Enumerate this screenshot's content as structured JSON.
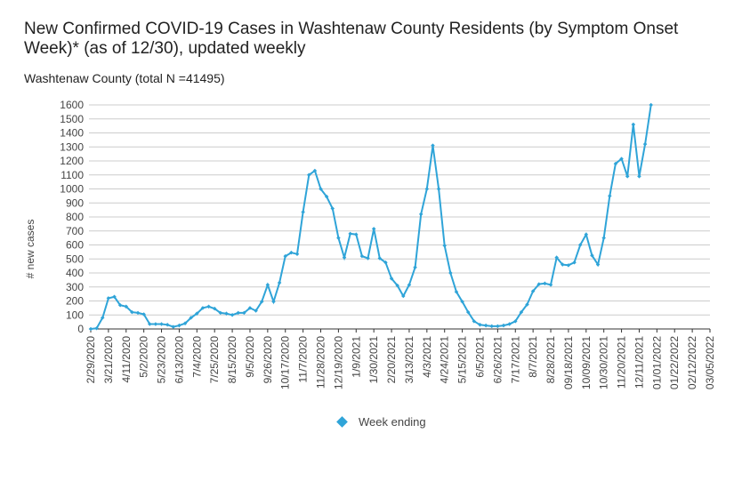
{
  "title": "New Confirmed COVID-19 Cases in Washtenaw County Residents (by Symptom Onset Week)* (as of 12/30), updated weekly",
  "subtitle": "Washtenaw County (total N =41495)",
  "legend": {
    "label": "Week ending",
    "color": "#2fa4d8"
  },
  "chart_data": {
    "type": "line",
    "title": "New Confirmed COVID-19 Cases in Washtenaw County Residents (by Symptom Onset Week)* (as of 12/30), updated weekly",
    "subtitle": "Washtenaw County (total N =41495)",
    "xlabel": "",
    "ylabel": "# new cases",
    "ylim": [
      0,
      1600
    ],
    "yticks": [
      0,
      100,
      200,
      300,
      400,
      500,
      600,
      700,
      800,
      900,
      1000,
      1100,
      1200,
      1300,
      1400,
      1500,
      1600
    ],
    "grid": true,
    "legend_position": "bottom",
    "color": "#2fa4d8",
    "xtick_labels": [
      "2/29/2020",
      "3/21/2020",
      "4/11/2020",
      "5/2/2020",
      "5/23/2020",
      "6/13/2020",
      "7/4/2020",
      "7/25/2020",
      "8/15/2020",
      "9/5/2020",
      "9/26/2020",
      "10/17/2020",
      "11/7/2020",
      "11/28/2020",
      "12/19/2020",
      "1/9/2021",
      "1/30/2021",
      "2/20/2021",
      "3/13/2021",
      "4/3/2021",
      "4/24/2021",
      "5/15/2021",
      "6/5/2021",
      "6/26/2021",
      "7/17/2021",
      "8/7/2021",
      "8/28/2021",
      "09/18/2021",
      "10/09/2021",
      "10/30/2021",
      "11/20/2021",
      "12/11/2021",
      "01/01/2022",
      "01/22/2022",
      "02/12/2022",
      "03/05/2022"
    ],
    "series": [
      {
        "name": "Week ending",
        "values": [
          0,
          5,
          80,
          220,
          230,
          170,
          160,
          120,
          115,
          105,
          35,
          35,
          35,
          30,
          15,
          25,
          40,
          80,
          110,
          150,
          160,
          145,
          115,
          110,
          100,
          115,
          115,
          150,
          130,
          195,
          315,
          195,
          330,
          520,
          545,
          535,
          835,
          1100,
          1130,
          1000,
          945,
          860,
          650,
          510,
          680,
          675,
          520,
          505,
          715,
          505,
          475,
          360,
          310,
          235,
          315,
          440,
          820,
          1000,
          1310,
          1000,
          595,
          400,
          265,
          195,
          120,
          55,
          30,
          25,
          20,
          20,
          25,
          35,
          55,
          120,
          175,
          270,
          320,
          325,
          315,
          510,
          460,
          455,
          475,
          600,
          675,
          525,
          460,
          650,
          950,
          1180,
          1215,
          1090,
          1460,
          1090,
          1320,
          1600
        ]
      }
    ]
  }
}
